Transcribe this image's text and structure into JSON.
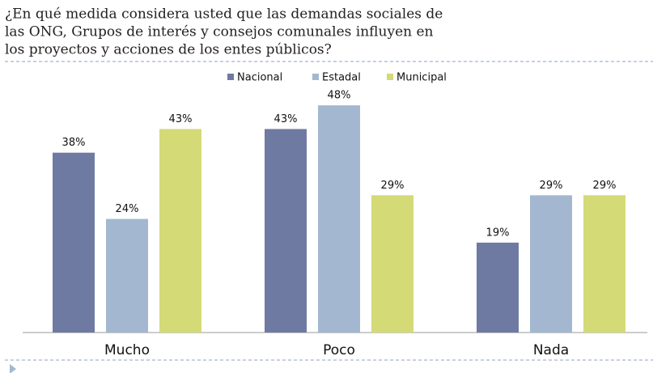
{
  "chart_data": {
    "type": "bar",
    "title": [
      "¿En qué medida considera usted que las demandas sociales de",
      "las ONG, Grupos de interés y consejos comunales influyen en",
      "los proyectos y acciones de los entes públicos?"
    ],
    "categories": [
      "Mucho",
      "Poco",
      "Nada"
    ],
    "series": [
      {
        "name": "Nacional",
        "color": "#6f7aa3",
        "values": [
          38,
          43,
          19
        ],
        "value_labels": [
          "38%",
          "43%",
          "19%"
        ]
      },
      {
        "name": "Estadal",
        "color": "#a3b8d0",
        "values": [
          24,
          48,
          29
        ],
        "value_labels": [
          "24%",
          "48%",
          "29%"
        ]
      },
      {
        "name": "Municipal",
        "color": "#d3da76",
        "values": [
          43,
          29,
          29
        ],
        "value_labels": [
          "43%",
          "29%",
          "29%"
        ]
      }
    ],
    "ylim": [
      0,
      50
    ]
  }
}
